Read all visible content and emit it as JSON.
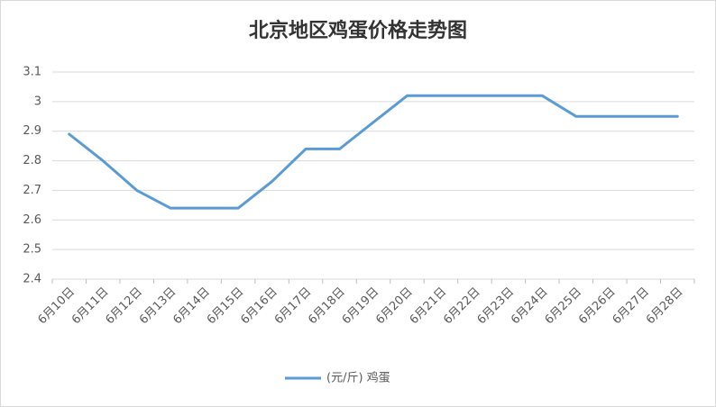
{
  "chart_data": {
    "type": "line",
    "title": "北京地区鸡蛋价格走势图",
    "categories": [
      "6月10日",
      "6月11日",
      "6月12日",
      "6月13日",
      "6月14日",
      "6月15日",
      "6月16日",
      "6月17日",
      "6月18日",
      "6月19日",
      "6月20日",
      "6月21日",
      "6月22日",
      "6月23日",
      "6月24日",
      "6月25日",
      "6月26日",
      "6月27日",
      "6月28日"
    ],
    "series": [
      {
        "name": "(元/斤)  鸡蛋",
        "color": "#5b9bd5",
        "values": [
          2.89,
          2.8,
          2.7,
          2.64,
          2.64,
          2.64,
          2.73,
          2.84,
          2.84,
          2.93,
          3.02,
          3.02,
          3.02,
          3.02,
          3.02,
          2.95,
          2.95,
          2.95,
          2.95
        ]
      }
    ],
    "ylim": [
      2.4,
      3.1
    ],
    "yticks": [
      2.4,
      2.5,
      2.6,
      2.7,
      2.8,
      2.9,
      3,
      3.1
    ],
    "grid": true,
    "legend": "bottom"
  }
}
